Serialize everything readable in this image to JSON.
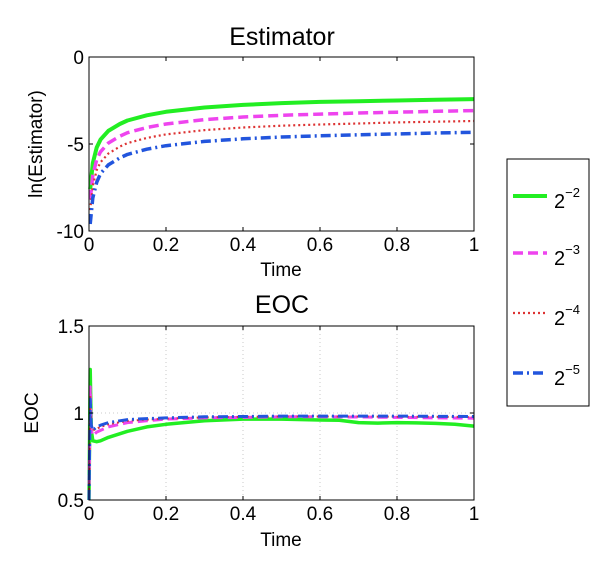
{
  "chart_data": [
    {
      "type": "line",
      "title": "Estimator",
      "xlabel": "Time",
      "ylabel": "ln(Estimator)",
      "xlim": [
        0,
        1
      ],
      "ylim": [
        -10,
        0
      ],
      "grid": false,
      "legend": "right",
      "xticks": [
        0,
        0.2,
        0.4,
        0.6,
        0.8,
        1
      ],
      "xtick_labels": [
        "0",
        "0.2",
        "0.4",
        "0.6",
        "0.8",
        "1"
      ],
      "yticks": [
        -10,
        -5,
        0
      ],
      "ytick_labels": [
        "-10",
        "-5",
        "0"
      ],
      "series": [
        {
          "name_base": "2",
          "name_exp": "−2",
          "color": "#22ee22",
          "dash": "",
          "width": 4,
          "x": [
            0.003,
            0.01,
            0.02,
            0.03,
            0.05,
            0.08,
            0.1,
            0.15,
            0.2,
            0.3,
            0.4,
            0.5,
            0.6,
            0.7,
            0.8,
            0.9,
            1.0
          ],
          "y": [
            -7.6,
            -6.1,
            -5.2,
            -4.75,
            -4.25,
            -3.85,
            -3.65,
            -3.35,
            -3.15,
            -2.9,
            -2.75,
            -2.65,
            -2.58,
            -2.54,
            -2.5,
            -2.46,
            -2.42
          ]
        },
        {
          "name_base": "2",
          "name_exp": "−3",
          "color": "#ee44ee",
          "dash": "10,5",
          "width": 3.5,
          "x": [
            0.003,
            0.01,
            0.02,
            0.03,
            0.05,
            0.08,
            0.1,
            0.15,
            0.2,
            0.3,
            0.4,
            0.5,
            0.6,
            0.7,
            0.8,
            0.9,
            1.0
          ],
          "y": [
            -8.2,
            -6.8,
            -5.9,
            -5.45,
            -4.95,
            -4.55,
            -4.35,
            -4.05,
            -3.85,
            -3.6,
            -3.45,
            -3.35,
            -3.28,
            -3.22,
            -3.17,
            -3.12,
            -3.08
          ]
        },
        {
          "name_base": "2",
          "name_exp": "−4",
          "color": "#dd3333",
          "dash": "2,3",
          "width": 2.2,
          "x": [
            0.003,
            0.01,
            0.02,
            0.03,
            0.05,
            0.08,
            0.1,
            0.15,
            0.2,
            0.3,
            0.4,
            0.5,
            0.6,
            0.7,
            0.8,
            0.9,
            1.0
          ],
          "y": [
            -8.8,
            -7.4,
            -6.5,
            -6.05,
            -5.55,
            -5.15,
            -4.95,
            -4.65,
            -4.45,
            -4.2,
            -4.05,
            -3.95,
            -3.88,
            -3.82,
            -3.76,
            -3.72,
            -3.68
          ]
        },
        {
          "name_base": "2",
          "name_exp": "−5",
          "color": "#2255dd",
          "dash": "10,4,2,4",
          "width": 3.5,
          "x": [
            0.003,
            0.01,
            0.02,
            0.03,
            0.05,
            0.08,
            0.1,
            0.15,
            0.2,
            0.3,
            0.4,
            0.5,
            0.6,
            0.7,
            0.8,
            0.9,
            1.0
          ],
          "y": [
            -9.6,
            -8.1,
            -7.2,
            -6.7,
            -6.2,
            -5.8,
            -5.6,
            -5.3,
            -5.1,
            -4.85,
            -4.7,
            -4.6,
            -4.53,
            -4.47,
            -4.42,
            -4.37,
            -4.33
          ]
        }
      ]
    },
    {
      "type": "line",
      "title": "EOC",
      "xlabel": "Time",
      "ylabel": "EOC",
      "xlim": [
        0,
        1
      ],
      "ylim": [
        0.5,
        1.5
      ],
      "grid": true,
      "xticks": [
        0,
        0.2,
        0.4,
        0.6,
        0.8,
        1
      ],
      "xtick_labels": [
        "0",
        "0.2",
        "0.4",
        "0.6",
        "0.8",
        "1"
      ],
      "yticks": [
        0.5,
        1,
        1.5
      ],
      "ytick_labels": [
        "0.5",
        "1",
        "1.5"
      ],
      "series": [
        {
          "name_base": "2",
          "name_exp": "−2",
          "color": "#22ee22",
          "dash": "",
          "width": 3.5,
          "x": [
            0.0,
            0.003,
            0.006,
            0.01,
            0.02,
            0.03,
            0.05,
            0.1,
            0.15,
            0.2,
            0.3,
            0.4,
            0.5,
            0.6,
            0.65,
            0.7,
            0.75,
            0.8,
            0.85,
            0.9,
            0.95,
            1.0
          ],
          "y": [
            0.5,
            1.25,
            0.9,
            0.84,
            0.835,
            0.84,
            0.86,
            0.895,
            0.92,
            0.935,
            0.955,
            0.965,
            0.965,
            0.96,
            0.958,
            0.945,
            0.942,
            0.945,
            0.943,
            0.94,
            0.935,
            0.925
          ]
        },
        {
          "name_base": "2",
          "name_exp": "−3",
          "color": "#ee44ee",
          "dash": "10,5",
          "width": 3,
          "x": [
            0.0,
            0.003,
            0.006,
            0.01,
            0.02,
            0.03,
            0.05,
            0.1,
            0.15,
            0.2,
            0.3,
            0.4,
            0.5,
            0.6,
            0.7,
            0.8,
            0.9,
            1.0
          ],
          "y": [
            0.5,
            1.15,
            0.9,
            0.87,
            0.89,
            0.9,
            0.92,
            0.945,
            0.955,
            0.965,
            0.972,
            0.975,
            0.978,
            0.978,
            0.977,
            0.975,
            0.972,
            0.97
          ]
        },
        {
          "name_base": "2",
          "name_exp": "−4",
          "color": "#dd3333",
          "dash": "2,3",
          "width": 2,
          "x": [
            0.0,
            0.003,
            0.006,
            0.01,
            0.02,
            0.03,
            0.05,
            0.1,
            0.15,
            0.2,
            0.3,
            0.4,
            0.5,
            0.6,
            0.7,
            0.8,
            0.9,
            1.0
          ],
          "y": [
            0.5,
            1.1,
            0.92,
            0.9,
            0.91,
            0.92,
            0.935,
            0.955,
            0.962,
            0.968,
            0.975,
            0.978,
            0.98,
            0.98,
            0.98,
            0.979,
            0.978,
            0.977
          ]
        },
        {
          "name_base": "2",
          "name_exp": "−5",
          "color": "#2255dd",
          "dash": "10,4,2,4",
          "width": 3,
          "x": [
            0.0,
            0.003,
            0.006,
            0.01,
            0.02,
            0.03,
            0.05,
            0.1,
            0.15,
            0.2,
            0.3,
            0.4,
            0.5,
            0.6,
            0.7,
            0.8,
            0.9,
            1.0
          ],
          "y": [
            0.5,
            1.08,
            0.93,
            0.9,
            0.92,
            0.93,
            0.945,
            0.962,
            0.968,
            0.972,
            0.978,
            0.98,
            0.982,
            0.982,
            0.982,
            0.982,
            0.981,
            0.98
          ]
        }
      ]
    }
  ]
}
